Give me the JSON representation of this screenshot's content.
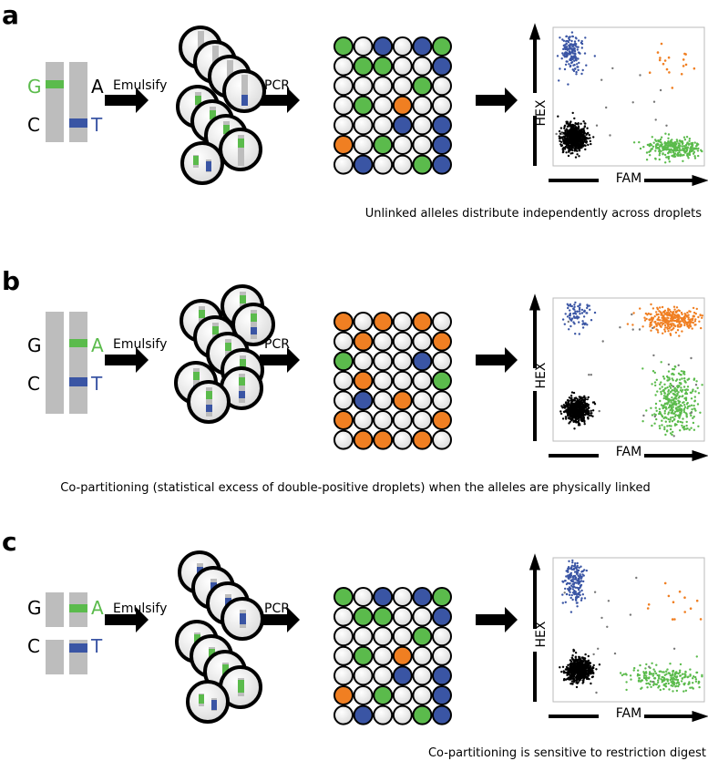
{
  "colors": {
    "green": "#5bbb4c",
    "blue": "#3a55a4",
    "orange": "#f07f22",
    "gray": "#bdbdbd",
    "black": "#000000",
    "empty": "#ececec"
  },
  "panels": [
    {
      "letter": "a",
      "alleles": {
        "top_left": "G",
        "top_right": "A",
        "bottom_left": "C",
        "bottom_right": "T"
      },
      "step1": "Emulsify",
      "step2": "PCR",
      "grid": [
        [
          "G",
          "W",
          "B",
          "W",
          "B",
          "G"
        ],
        [
          "W",
          "G",
          "G",
          "W",
          "W",
          "B"
        ],
        [
          "W",
          "W",
          "W",
          "W",
          "G",
          "W"
        ],
        [
          "W",
          "G",
          "W",
          "O",
          "W",
          "W"
        ],
        [
          "W",
          "W",
          "W",
          "B",
          "W",
          "B"
        ],
        [
          "O",
          "W",
          "G",
          "W",
          "W",
          "B"
        ],
        [
          "W",
          "B",
          "W",
          "W",
          "G",
          "B"
        ]
      ],
      "y_axis": "HEX",
      "x_axis": "FAM",
      "caption": "Unlinked alleles distribute independently across droplets"
    },
    {
      "letter": "b",
      "alleles": {
        "top_left": "G",
        "top_right": "A",
        "bottom_left": "C",
        "bottom_right": "T"
      },
      "step1": "Emulsify",
      "step2": "PCR",
      "grid": [
        [
          "O",
          "W",
          "O",
          "W",
          "O",
          "W"
        ],
        [
          "W",
          "O",
          "W",
          "W",
          "W",
          "O"
        ],
        [
          "G",
          "W",
          "W",
          "W",
          "B",
          "W"
        ],
        [
          "W",
          "O",
          "W",
          "W",
          "W",
          "G"
        ],
        [
          "W",
          "B",
          "W",
          "O",
          "W",
          "W"
        ],
        [
          "O",
          "W",
          "W",
          "W",
          "W",
          "O"
        ],
        [
          "W",
          "O",
          "O",
          "W",
          "O",
          "W"
        ]
      ],
      "y_axis": "HEX",
      "x_axis": "FAM",
      "caption": "Co-partitioning (statistical excess of double-positive droplets) when the alleles are physically linked"
    },
    {
      "letter": "c",
      "alleles": {
        "top_left": "G",
        "top_right": "A",
        "bottom_left": "C",
        "bottom_right": "T"
      },
      "step1": "Emulsify",
      "step2": "PCR",
      "grid": [
        [
          "G",
          "W",
          "B",
          "W",
          "B",
          "G"
        ],
        [
          "W",
          "G",
          "G",
          "W",
          "W",
          "B"
        ],
        [
          "W",
          "W",
          "W",
          "W",
          "G",
          "W"
        ],
        [
          "W",
          "G",
          "W",
          "O",
          "W",
          "W"
        ],
        [
          "W",
          "W",
          "W",
          "B",
          "W",
          "B"
        ],
        [
          "O",
          "W",
          "G",
          "W",
          "W",
          "B"
        ],
        [
          "W",
          "B",
          "W",
          "W",
          "G",
          "B"
        ]
      ],
      "y_axis": "HEX",
      "x_axis": "FAM",
      "caption": "Co-partitioning is sensitive to restriction digest"
    }
  ]
}
